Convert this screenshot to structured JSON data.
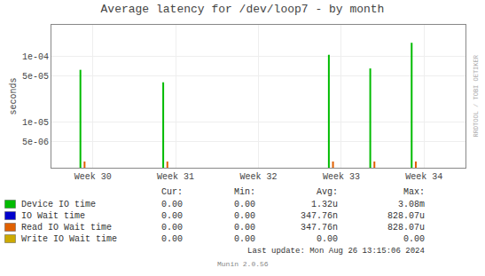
{
  "chart_data": {
    "type": "stem",
    "title": "Average latency for /dev/loop7 - by month",
    "ylabel": "seconds",
    "log": "y",
    "grid": true,
    "xlim": [
      0,
      5
    ],
    "xticks": [
      {
        "value": 0.5,
        "label": "Week 30"
      },
      {
        "value": 1.5,
        "label": "Week 31"
      },
      {
        "value": 2.5,
        "label": "Week 32"
      },
      {
        "value": 3.5,
        "label": "Week 33"
      },
      {
        "value": 4.5,
        "label": "Week 34"
      }
    ],
    "ylim": [
      2e-06,
      0.0003
    ],
    "yticks": [
      {
        "value": 5e-06,
        "label": "5e-06"
      },
      {
        "value": 1e-05,
        "label": "1e-05"
      },
      {
        "value": 5e-05,
        "label": "5e-05"
      },
      {
        "value": 0.0001,
        "label": "1e-04"
      }
    ],
    "series": [
      {
        "name": "Device IO time",
        "color": "#00bb00",
        "x": [
          0.35,
          1.35,
          3.35,
          3.85,
          4.35
        ],
        "values": [
          6.2e-05,
          4e-05,
          0.000105,
          6.5e-05,
          0.00016
        ]
      },
      {
        "name": "Read IO Wait time",
        "color": "#e06000",
        "marker": "line-ns",
        "x": [
          0.4,
          1.4,
          3.4,
          3.9,
          4.4
        ],
        "values": [
          2e-06,
          2e-06,
          2e-06,
          2e-06,
          2e-06
        ]
      }
    ],
    "legend_table": {
      "headers": [
        "Cur:",
        "Min:",
        "Avg:",
        "Max:"
      ],
      "rows": [
        {
          "name": "Device IO time",
          "color": "#00bb00",
          "values": [
            "0.00",
            "0.00",
            "1.32u",
            "3.08m"
          ]
        },
        {
          "name": "IO Wait time",
          "color": "#0000cc",
          "values": [
            "0.00",
            "0.00",
            "347.76n",
            "828.07u"
          ]
        },
        {
          "name": "Read IO Wait time",
          "color": "#e06000",
          "values": [
            "0.00",
            "0.00",
            "347.76n",
            "828.07u"
          ]
        },
        {
          "name": "Write IO Wait time",
          "color": "#ccaa00",
          "values": [
            "0.00",
            "0.00",
            "0.00",
            "0.00"
          ]
        }
      ]
    },
    "side_note": "RRDTOOL / TOBI OETIKER",
    "last_update": "Last update: Mon Aug 26 13:15:06 2024",
    "footer": "Munin 2.0.56"
  }
}
